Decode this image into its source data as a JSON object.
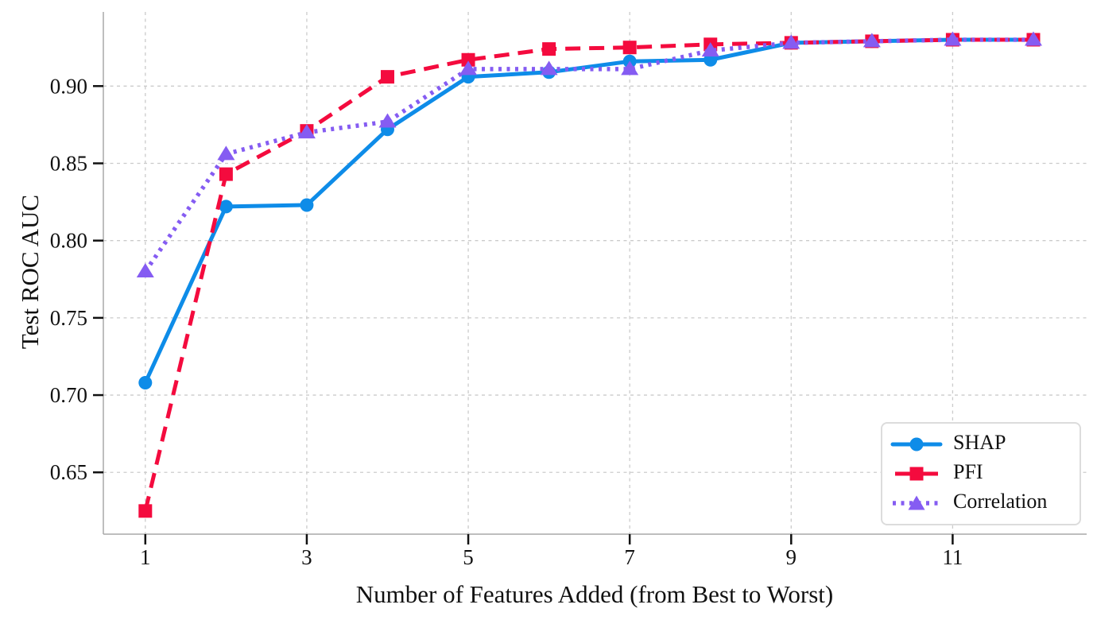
{
  "chart_data": {
    "type": "line",
    "title": "",
    "xlabel": "Number of Features Added (from Best to Worst)",
    "ylabel": "Test ROC AUC",
    "x": [
      1,
      2,
      3,
      4,
      5,
      6,
      7,
      8,
      9,
      10,
      11,
      12
    ],
    "series": [
      {
        "name": "SHAP",
        "color": "#0E8CE8",
        "marker": "circle",
        "line_style": "solid",
        "values": [
          0.708,
          0.822,
          0.823,
          0.872,
          0.906,
          0.909,
          0.916,
          0.917,
          0.928,
          0.929,
          0.93,
          0.93
        ]
      },
      {
        "name": "PFI",
        "color": "#F40B3E",
        "marker": "square",
        "line_style": "dashed",
        "values": [
          0.625,
          0.843,
          0.871,
          0.906,
          0.917,
          0.924,
          0.925,
          0.927,
          0.928,
          0.929,
          0.93,
          0.93
        ]
      },
      {
        "name": "Correlation",
        "color": "#855CF2",
        "marker": "triangle",
        "line_style": "dotted",
        "values": [
          0.78,
          0.856,
          0.87,
          0.877,
          0.911,
          0.911,
          0.911,
          0.923,
          0.928,
          0.929,
          0.93,
          0.93
        ]
      }
    ],
    "xticks": [
      1,
      3,
      5,
      7,
      9,
      11
    ],
    "xtick_labels": [
      "1",
      "3",
      "5",
      "7",
      "9",
      "11"
    ],
    "yticks": [
      0.65,
      0.7,
      0.75,
      0.8,
      0.85,
      0.9
    ],
    "ytick_labels": [
      "0.65",
      "0.70",
      "0.75",
      "0.80",
      "0.85",
      "0.90"
    ],
    "xlim": [
      0.48,
      12.66
    ],
    "ylim": [
      0.61,
      0.948
    ],
    "grid": true,
    "legend_position": "lower right"
  }
}
